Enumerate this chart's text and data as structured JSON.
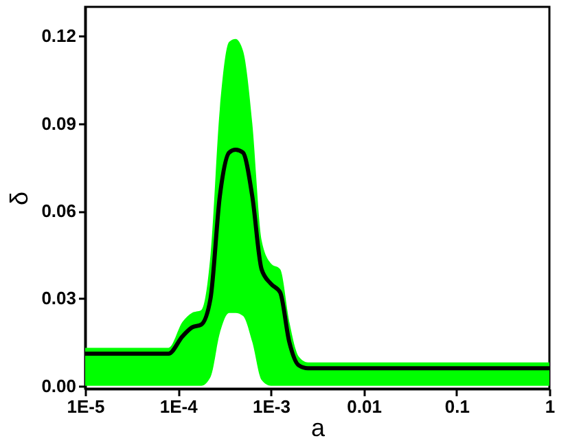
{
  "chart_data": {
    "type": "line",
    "xlabel": "a",
    "ylabel": "δ",
    "log": "x",
    "grid": false,
    "marker": "none",
    "line_style": "solid",
    "x": [
      1e-05,
      5e-05,
      7.9e-05,
      0.000112,
      0.000141,
      0.000178,
      0.000224,
      0.000282,
      0.000355,
      0.000417,
      0.000501,
      0.000631,
      0.000794,
      0.001,
      0.00126,
      0.00158,
      0.002,
      0.00251,
      0.00398,
      0.01,
      0.1,
      1
    ],
    "series": [
      {
        "color": "#000000",
        "values": [
          0.011,
          0.011,
          0.011,
          0.017,
          0.02,
          0.021,
          0.03,
          0.065,
          0.08,
          0.081,
          0.08,
          0.065,
          0.04,
          0.035,
          0.032,
          0.015,
          0.007,
          0.006,
          0.006,
          0.006,
          0.006,
          0.006
        ],
        "upper": [
          0.013,
          0.013,
          0.013,
          0.022,
          0.025,
          0.026,
          0.045,
          0.095,
          0.118,
          0.119,
          0.115,
          0.09,
          0.05,
          0.042,
          0.04,
          0.022,
          0.01,
          0.008,
          0.008,
          0.008,
          0.008,
          0.008
        ],
        "lower": [
          0,
          0,
          0,
          0,
          0,
          0,
          0.003,
          0.018,
          0.025,
          0.025,
          0.024,
          0.015,
          0.002,
          0,
          0,
          0,
          0,
          0,
          0,
          0,
          0,
          0
        ]
      }
    ],
    "xlim": [
      1e-05,
      1
    ],
    "xticks": [
      {
        "value": 1e-05,
        "label": "1E-5"
      },
      {
        "value": 0.0001,
        "label": "1E-4"
      },
      {
        "value": 0.001,
        "label": "1E-3"
      },
      0.01,
      0.1,
      1
    ],
    "ylim": [
      -0.001,
      0.13
    ],
    "yticks": [
      {
        "value": 0,
        "label": "0.00"
      },
      0.03,
      0.06,
      0.09,
      0.12
    ]
  }
}
